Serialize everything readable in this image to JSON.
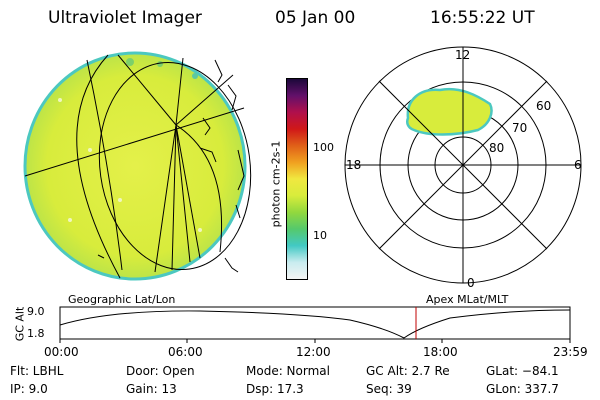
{
  "header": {
    "instrument": "Ultraviolet Imager",
    "date": "05 Jan 00",
    "time": "16:55:22 UT"
  },
  "colors": {
    "background": "#ffffff",
    "image_fill": "#d8ec3c",
    "image_edge": "#4cc8c0",
    "time_marker": "#c00000"
  },
  "colorbar": {
    "label": "photon cm-2s-1",
    "ticks": [
      "100",
      "10"
    ],
    "scale": "log",
    "stops": [
      "#f4f4f4",
      "#c9ecef",
      "#42c9c4",
      "#55c96c",
      "#92d83e",
      "#d8ec3c",
      "#f0e840",
      "#f0a020",
      "#e06018",
      "#d01818",
      "#b0104c",
      "#62106a",
      "#1c083a"
    ]
  },
  "left_panel": {
    "caption": "Geographic Lat/Lon"
  },
  "right_panel": {
    "caption": "Apex MLat/MLT",
    "mlt_labels": {
      "top": "12",
      "left": "18",
      "right": "6",
      "bottom": "0"
    },
    "mlat_labels": [
      "60",
      "70",
      "80"
    ]
  },
  "altitude_plot": {
    "ylabel": "GC Alt",
    "yticks": [
      "9.0",
      "1.8"
    ],
    "xticks": [
      "00:00",
      "06:00",
      "12:00",
      "18:00",
      "23:59"
    ],
    "marker_time": "16:55"
  },
  "stats": {
    "filter": "Flt: LBHL",
    "ip": "IP:  9.0",
    "door": "Door: Open",
    "gain": "Gain: 13",
    "mode": "Mode: Normal",
    "dsp": "Dsp:   17.3",
    "gc_alt": "GC Alt: 2.7 Re",
    "seq": "Seq: 39",
    "glat": "GLat: −84.1",
    "glon": "GLon: 337.7"
  }
}
